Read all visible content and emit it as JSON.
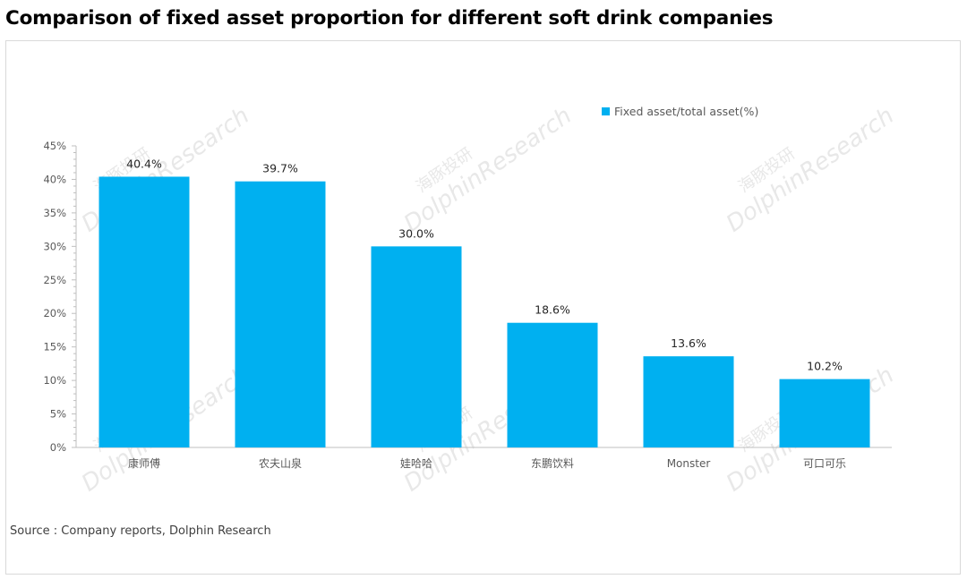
{
  "title": "Comparison of fixed asset proportion for different soft drink companies",
  "source": "Source : Company reports, Dolphin Research",
  "watermark": "DolphinResearch",
  "watermark_cn": "海豚投研",
  "colors": {
    "bar": "#00B0F0",
    "axis": "#bfbfbf",
    "tick_text": "#595959",
    "label_text": "#262626",
    "watermark": "#e8e8e8"
  },
  "chart_data": {
    "type": "bar",
    "categories": [
      "康师傅",
      "农夫山泉",
      "娃哈哈",
      "东鹏饮料",
      "Monster",
      "可口可乐"
    ],
    "series": [
      {
        "name": "Fixed asset/total asset(%)",
        "values": [
          40.4,
          39.7,
          30.0,
          18.6,
          13.6,
          10.2
        ]
      }
    ],
    "data_labels": [
      "40.4%",
      "39.7%",
      "30.0%",
      "18.6%",
      "13.6%",
      "10.2%"
    ],
    "y_ticks": [
      "0%",
      "5%",
      "10%",
      "15%",
      "20%",
      "25%",
      "30%",
      "35%",
      "40%",
      "45%"
    ],
    "ylim": [
      0,
      45
    ],
    "grid": false,
    "legend_position": "top-right"
  }
}
